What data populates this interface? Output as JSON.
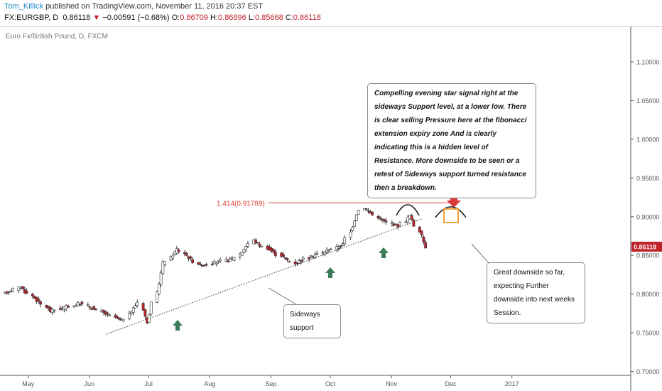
{
  "header": {
    "user": "Tom_Killick",
    "published": " published on TradingView.com, November 11, 2016 20:37 EST",
    "symbol": "FX:EURGBP, D",
    "price": "0.86118",
    "arrow": "▼",
    "change": "−0.00591 (−0.68%)",
    "o_label": "O:",
    "o_value": "0.86709",
    "h_label": "H:",
    "h_value": "0.86896",
    "l_label": "L:",
    "l_value": "0.85668",
    "c_label": "C:",
    "c_value": "0.86118"
  },
  "chart_title": "Euro Fx/British Pound, D, FXCM",
  "colors": {
    "up": "#ffffff",
    "down": "#c0222a",
    "wick": "#333333",
    "annotation_red": "#d93a3a",
    "green": "#3d7c5a",
    "fib": "#e0453a",
    "orange": "#f2a33a",
    "last_price_bg": "#c0222a"
  },
  "annotations": {
    "evening_star": "Compelling evening star signal right at the sideways Support level, at a lower low. There is clear selling Pressure here at the fibonacci extension expiry zone And is clearly indicating this is a hidden level of Resistance. More downside to be seen or a retest of Sideways support turned resistance then a breakdown.",
    "downside": "Great downside so far, expecting Further downside into next weeks Session.",
    "support": "Sideways support",
    "fib_label": "1.414(0.91789)"
  },
  "chart_data": {
    "type": "candlestick",
    "title": "Euro Fx/British Pound, D, FXCM",
    "ylim": [
      0.695,
      1.145
    ],
    "yticks": [
      "0.70000",
      "0.75000",
      "0.80000",
      "0.85000",
      "0.90000",
      "0.95000",
      "1.00000",
      "1.05000",
      "1.10000"
    ],
    "xticks": [
      "May",
      "Jun",
      "Jul",
      "Aug",
      "Sep",
      "Oct",
      "Nov",
      "Dec",
      "2017"
    ],
    "last_price": "0.86118",
    "fib_level": 0.91789,
    "segments": [
      {
        "dates": [
          "2016-04-11",
          "2016-04-20"
        ],
        "values": [
          0.8,
          0.809
        ]
      },
      {
        "dates": [
          "2016-04-20",
          "2016-05-05"
        ],
        "values": [
          0.809,
          0.778
        ]
      },
      {
        "dates": [
          "2016-05-05",
          "2016-05-20"
        ],
        "values": [
          0.778,
          0.788
        ]
      },
      {
        "dates": [
          "2016-05-20",
          "2016-05-30"
        ],
        "values": [
          0.788,
          0.779
        ]
      },
      {
        "dates": [
          "2016-05-30",
          "2016-06-10"
        ],
        "values": [
          0.779,
          0.765
        ]
      },
      {
        "dates": [
          "2016-06-10",
          "2016-06-20"
        ],
        "values": [
          0.765,
          0.79
        ]
      },
      {
        "dates": [
          "2016-06-20",
          "2016-06-23"
        ],
        "values": [
          0.79,
          0.762
        ]
      },
      {
        "dates": [
          "2016-06-23",
          "2016-07-01"
        ],
        "values": [
          0.762,
          0.84
        ]
      },
      {
        "dates": [
          "2016-07-01",
          "2016-07-08"
        ],
        "values": [
          0.84,
          0.858
        ]
      },
      {
        "dates": [
          "2016-07-08",
          "2016-07-20"
        ],
        "values": [
          0.858,
          0.837
        ]
      },
      {
        "dates": [
          "2016-07-20",
          "2016-08-05"
        ],
        "values": [
          0.837,
          0.845
        ]
      },
      {
        "dates": [
          "2016-08-05",
          "2016-08-16"
        ],
        "values": [
          0.845,
          0.869
        ]
      },
      {
        "dates": [
          "2016-08-16",
          "2016-09-06"
        ],
        "values": [
          0.869,
          0.84
        ]
      },
      {
        "dates": [
          "2016-09-06",
          "2016-09-30"
        ],
        "values": [
          0.84,
          0.864
        ]
      },
      {
        "dates": [
          "2016-09-30",
          "2016-10-07"
        ],
        "values": [
          0.864,
          0.904
        ]
      },
      {
        "dates": [
          "2016-10-07",
          "2016-10-11"
        ],
        "values": [
          0.904,
          0.912
        ]
      },
      {
        "dates": [
          "2016-10-11",
          "2016-10-20"
        ],
        "values": [
          0.912,
          0.895
        ]
      },
      {
        "dates": [
          "2016-10-20",
          "2016-10-28"
        ],
        "values": [
          0.895,
          0.888
        ]
      },
      {
        "dates": [
          "2016-10-28",
          "2016-11-03"
        ],
        "values": [
          0.888,
          0.902
        ]
      },
      {
        "dates": [
          "2016-11-03",
          "2016-11-11"
        ],
        "values": [
          0.902,
          0.861
        ]
      }
    ],
    "trendline": {
      "from": {
        "date": "2016-06-01",
        "value": 0.748
      },
      "to": {
        "date": "2016-11-08",
        "value": 0.897
      }
    }
  }
}
